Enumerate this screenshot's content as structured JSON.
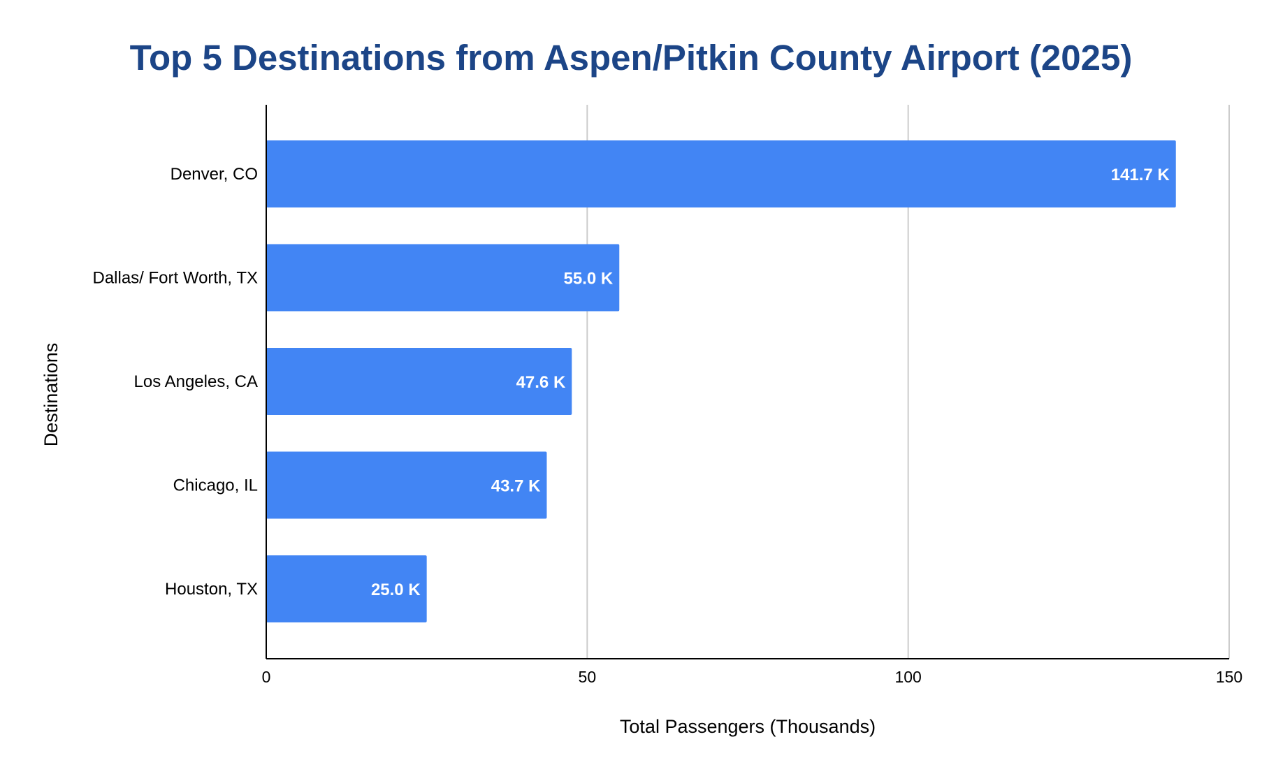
{
  "chart_data": {
    "type": "bar",
    "orientation": "horizontal",
    "title": "Top 5 Destinations from Aspen/Pitkin County Airport (2025)",
    "xlabel": "Total Passengers (Thousands)",
    "ylabel": "Destinations",
    "categories": [
      "Denver, CO",
      "Dallas/ Fort Worth, TX",
      "Los Angeles, CA",
      "Chicago, IL",
      "Houston, TX"
    ],
    "values": [
      141.7,
      55.0,
      47.6,
      43.7,
      25.0
    ],
    "data_labels": [
      "141.7 K",
      "55.0 K",
      "47.6 K",
      "43.7 K",
      "25.0 K"
    ],
    "xlim": [
      0,
      150
    ],
    "xticks": [
      0,
      50,
      100,
      150
    ],
    "xtick_labels": [
      "0",
      "50",
      "100",
      "150"
    ],
    "grid": true,
    "legend": "none",
    "colors": {
      "bar": "#4285f4",
      "title": "#1c4587",
      "grid": "#cccccc",
      "axis": "#000000",
      "data_label": "#ffffff"
    }
  }
}
